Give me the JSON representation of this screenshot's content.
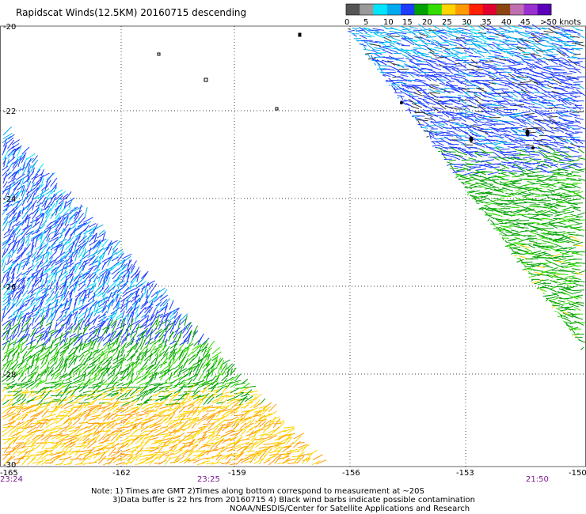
{
  "title": "Rapidscat Winds(12.5KM) 20160715 descending",
  "legend": {
    "ticks": [
      "0",
      "5",
      "10",
      "15",
      "20",
      "25",
      "30",
      "35",
      "40",
      "45",
      ">50 knots"
    ],
    "colors": [
      "#555555",
      "#9a9a9a",
      "#00e5ff",
      "#00aaee",
      "#1e3cff",
      "#00a000",
      "#33dd00",
      "#ffd400",
      "#ff9a00",
      "#ff2000",
      "#e00030",
      "#8b4513",
      "#c070b0",
      "#9b30d0",
      "#5a00b8"
    ]
  },
  "axes": {
    "lon_labels": [
      "-165",
      "-162",
      "-159",
      "-156",
      "-153",
      "-150"
    ],
    "lat_labels": [
      "-20",
      "-22",
      "-24",
      "-26",
      "-28",
      "-30"
    ]
  },
  "times": [
    "23:24",
    "23:25",
    "21:50"
  ],
  "notes": [
    "Note: 1) Times are GMT 2)Times along bottom correspond to measurement at ~20S",
    "3)Data buffer is 22 hrs from 20160715 4) Black wind barbs indicate possible contamination",
    "NOAA/NESDIS/Center for Satellite Applications and Research"
  ]
}
